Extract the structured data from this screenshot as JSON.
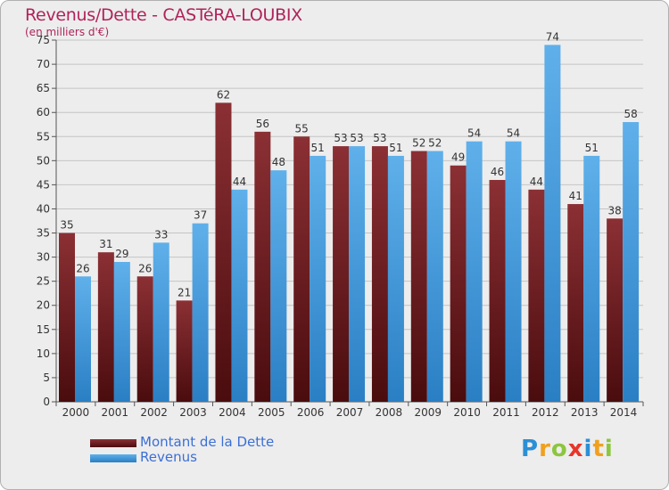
{
  "header": {
    "title": "Revenus/Dette - CASTéRA-LOUBIX",
    "subtitle": "(en milliers d'€)"
  },
  "legend": {
    "items": [
      {
        "label": "Montant de la Dette"
      },
      {
        "label": "Revenus"
      }
    ]
  },
  "logo": {
    "text": "Proxiti"
  },
  "colors": {
    "dette_top": "#8b3034",
    "dette_bottom": "#4a0c0e",
    "revenus_top": "#5fb0ea",
    "revenus_bottom": "#2a7fc4",
    "title": "#b0235a",
    "legend_text": "#3b6fd6",
    "grid": "#c4c4c4"
  },
  "chart_data": {
    "type": "bar",
    "title": "Revenus/Dette - CASTéRA-LOUBIX",
    "subtitle": "(en milliers d'€)",
    "categories": [
      "2000",
      "2001",
      "2002",
      "2003",
      "2004",
      "2005",
      "2006",
      "2007",
      "2008",
      "2009",
      "2010",
      "2011",
      "2012",
      "2013",
      "2014"
    ],
    "series": [
      {
        "name": "Montant de la Dette",
        "values": [
          35,
          31,
          26,
          21,
          62,
          56,
          55,
          53,
          53,
          52,
          49,
          46,
          44,
          41,
          38
        ]
      },
      {
        "name": "Revenus",
        "values": [
          26,
          29,
          33,
          37,
          44,
          48,
          51,
          53,
          51,
          52,
          54,
          54,
          74,
          51,
          58
        ]
      }
    ],
    "ylim": [
      0,
      75
    ],
    "ytick_step": 5,
    "grid": true,
    "legend_position": "bottom-left",
    "data_labels": true
  }
}
